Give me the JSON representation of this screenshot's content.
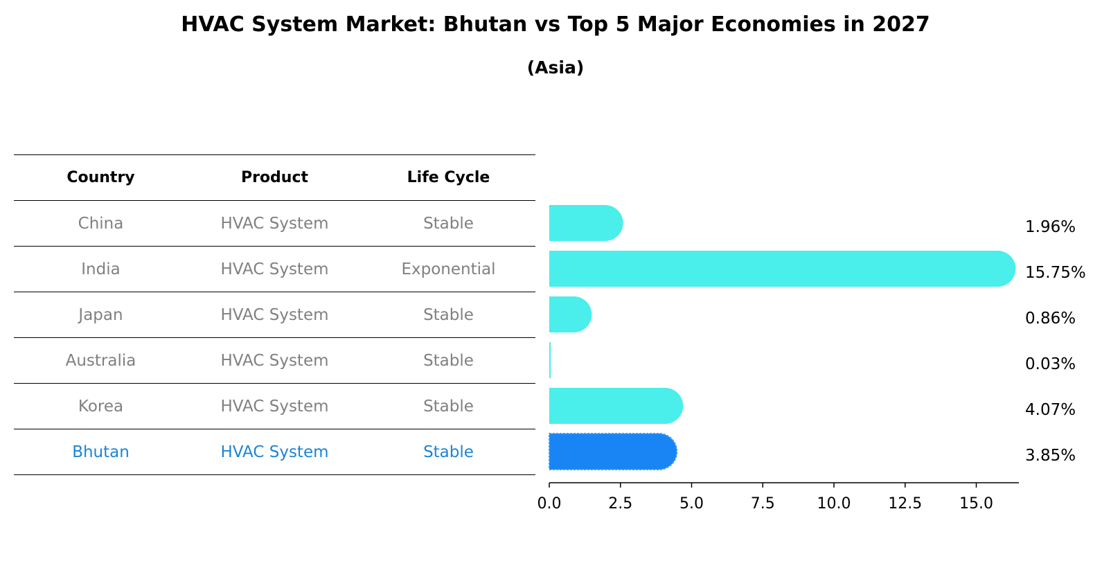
{
  "title": "HVAC System Market: Bhutan vs Top 5 Major Economies in 2027",
  "subtitle": "(Asia)",
  "table": {
    "headers": [
      "Country",
      "Product",
      "Life Cycle"
    ],
    "rows": [
      {
        "country": "China",
        "product": "HVAC System",
        "life_cycle": "Stable"
      },
      {
        "country": "India",
        "product": "HVAC System",
        "life_cycle": "Exponential"
      },
      {
        "country": "Japan",
        "product": "HVAC System",
        "life_cycle": "Stable"
      },
      {
        "country": "Australia",
        "product": "HVAC System",
        "life_cycle": "Stable"
      },
      {
        "country": "Korea",
        "product": "HVAC System",
        "life_cycle": "Stable"
      },
      {
        "country": "Bhutan",
        "product": "HVAC System",
        "life_cycle": "Stable"
      }
    ]
  },
  "colors": {
    "bar": "#4aeeea",
    "highlight_bar": "#1985f5",
    "highlight_text": "#1a85d6",
    "muted_text": "#808080"
  },
  "chart_data": {
    "type": "bar",
    "orientation": "horizontal",
    "categories": [
      "China",
      "India",
      "Japan",
      "Australia",
      "Korea",
      "Bhutan"
    ],
    "values": [
      1.96,
      15.75,
      0.86,
      0.03,
      4.07,
      3.85
    ],
    "value_labels": [
      "1.96%",
      "15.75%",
      "0.86%",
      "0.03%",
      "4.07%",
      "3.85%"
    ],
    "highlight": "Bhutan",
    "xlim": [
      0,
      16.5
    ],
    "xticks": [
      0.0,
      2.5,
      5.0,
      7.5,
      10.0,
      12.5,
      15.0
    ],
    "xtick_labels": [
      "0.0",
      "2.5",
      "5.0",
      "7.5",
      "10.0",
      "12.5",
      "15.0"
    ],
    "title": "HVAC System Market: Bhutan vs Top 5 Major Economies in 2027",
    "subtitle": "(Asia)",
    "xlabel": "",
    "ylabel": "",
    "grid": false
  }
}
